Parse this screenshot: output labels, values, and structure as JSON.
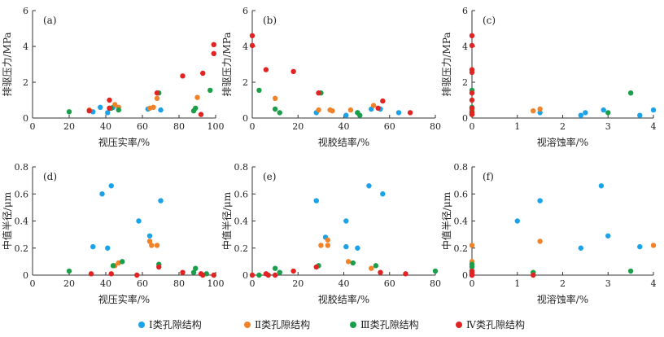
{
  "series_info": [
    {
      "name": "Ⅰ类孔隙结构",
      "color": "#1aa3e8"
    },
    {
      "name": "Ⅱ类孔隙结构",
      "color": "#f0832a"
    },
    {
      "name": "Ⅲ类孔隙结构",
      "color": "#1a9e4a"
    },
    {
      "name": "Ⅳ类孔隙结构",
      "color": "#e02424"
    }
  ],
  "chart_data": [
    {
      "type": "scatter",
      "panel": "(a)",
      "xlabel": "视压实率/%",
      "ylabel": "排驱压力/MPa",
      "xlim": [
        0,
        100
      ],
      "ylim": [
        0,
        6
      ],
      "xticks": [
        0,
        20,
        40,
        60,
        80,
        100
      ],
      "yticks": [
        0,
        2,
        4,
        6
      ],
      "series": [
        {
          "name": "Ⅰ类孔隙结构",
          "points": [
            [
              33,
              0.35
            ],
            [
              37,
              0.6
            ],
            [
              41,
              0.3
            ],
            [
              44,
              0.6
            ],
            [
              63,
              0.5
            ],
            [
              70,
              0.45
            ]
          ]
        },
        {
          "name": "Ⅱ类孔隙结构",
          "points": [
            [
              31,
              0.45
            ],
            [
              42,
              0.55
            ],
            [
              45,
              0.75
            ],
            [
              47,
              0.6
            ],
            [
              64,
              0.55
            ],
            [
              66,
              0.6
            ],
            [
              68,
              1.1
            ],
            [
              90,
              1.15
            ]
          ]
        },
        {
          "name": "Ⅲ类孔隙结构",
          "points": [
            [
              20,
              0.35
            ],
            [
              43,
              0.55
            ],
            [
              47,
              0.45
            ],
            [
              69,
              1.4
            ],
            [
              88,
              0.4
            ],
            [
              89,
              0.55
            ],
            [
              97,
              1.55
            ]
          ]
        },
        {
          "name": "Ⅳ类孔隙结构",
          "points": [
            [
              31,
              0.4
            ],
            [
              42,
              0.55
            ],
            [
              42,
              1.0
            ],
            [
              68,
              1.4
            ],
            [
              82,
              2.35
            ],
            [
              92,
              0.2
            ],
            [
              93,
              2.5
            ],
            [
              99,
              4.1
            ],
            [
              99,
              3.6
            ]
          ]
        }
      ]
    },
    {
      "type": "scatter",
      "panel": "(b)",
      "xlabel": "视胶结率/%",
      "ylabel": "排驱压力/MPa",
      "xlim": [
        0,
        80
      ],
      "ylim": [
        0,
        6
      ],
      "xticks": [
        0,
        20,
        40,
        60,
        80
      ],
      "yticks": [
        0,
        2,
        4,
        6
      ],
      "series": [
        {
          "name": "Ⅰ类孔隙结构",
          "points": [
            [
              28,
              0.3
            ],
            [
              41,
              0.15
            ],
            [
              46,
              0.3
            ],
            [
              52,
              0.5
            ],
            [
              56,
              0.5
            ],
            [
              64,
              0.3
            ]
          ]
        },
        {
          "name": "Ⅱ类孔隙结构",
          "points": [
            [
              10,
              1.1
            ],
            [
              29,
              0.45
            ],
            [
              34,
              0.45
            ],
            [
              35,
              0.4
            ],
            [
              43,
              0.45
            ],
            [
              53,
              0.7
            ]
          ]
        },
        {
          "name": "Ⅲ类孔隙结构",
          "points": [
            [
              3,
              1.55
            ],
            [
              10,
              0.5
            ],
            [
              12,
              0.3
            ],
            [
              30,
              1.4
            ],
            [
              46,
              0.3
            ],
            [
              47,
              0.15
            ]
          ]
        },
        {
          "name": "Ⅳ类孔隙结构",
          "points": [
            [
              0,
              4.6
            ],
            [
              0,
              4.05
            ],
            [
              6,
              2.7
            ],
            [
              18,
              2.6
            ],
            [
              29,
              1.4
            ],
            [
              55,
              0.55
            ],
            [
              57,
              0.95
            ],
            [
              69,
              0.3
            ]
          ]
        }
      ]
    },
    {
      "type": "scatter",
      "panel": "(c)",
      "xlabel": "视溶蚀率/%",
      "ylabel": "排驱压力/MPa",
      "xlim": [
        0,
        4
      ],
      "ylim": [
        0,
        6
      ],
      "xticks": [
        0,
        1,
        2,
        3,
        4
      ],
      "yticks": [
        0,
        2,
        4,
        6
      ],
      "series": [
        {
          "name": "Ⅰ类孔隙结构",
          "points": [
            [
              1.5,
              0.3
            ],
            [
              2.4,
              0.15
            ],
            [
              2.5,
              0.3
            ],
            [
              2.9,
              0.45
            ],
            [
              3.7,
              0.15
            ],
            [
              4.0,
              0.45
            ]
          ]
        },
        {
          "name": "Ⅱ类孔隙结构",
          "points": [
            [
              0.0,
              0.45
            ],
            [
              1.35,
              0.4
            ],
            [
              1.5,
              0.5
            ]
          ]
        },
        {
          "name": "Ⅲ类孔隙结构",
          "points": [
            [
              0.0,
              1.55
            ],
            [
              0.0,
              0.6
            ],
            [
              0.0,
              0.35
            ],
            [
              0.0,
              0.2
            ],
            [
              3.0,
              0.3
            ],
            [
              3.5,
              1.4
            ]
          ]
        },
        {
          "name": "Ⅳ类孔隙结构",
          "points": [
            [
              0.0,
              4.6
            ],
            [
              0.0,
              4.05
            ],
            [
              0.0,
              2.7
            ],
            [
              0.0,
              2.55
            ],
            [
              0.0,
              1.4
            ],
            [
              0.0,
              1.0
            ],
            [
              0.0,
              0.55
            ],
            [
              0.0,
              0.2
            ],
            [
              0.0,
              0.3
            ]
          ]
        }
      ]
    },
    {
      "type": "scatter",
      "panel": "(d)",
      "xlabel": "视压实率/%",
      "ylabel": "中值半径/μm",
      "xlim": [
        0,
        100
      ],
      "ylim": [
        0,
        0.8
      ],
      "xticks": [
        0,
        20,
        40,
        60,
        80,
        100
      ],
      "yticks": [
        0,
        0.2,
        0.4,
        0.6,
        0.8
      ],
      "series": [
        {
          "name": "Ⅰ类孔隙结构",
          "points": [
            [
              33,
              0.21
            ],
            [
              38,
              0.6
            ],
            [
              41,
              0.2
            ],
            [
              43,
              0.66
            ],
            [
              58,
              0.4
            ],
            [
              64,
              0.29
            ],
            [
              70,
              0.55
            ]
          ]
        },
        {
          "name": "Ⅱ类孔隙结构",
          "points": [
            [
              45,
              0.07
            ],
            [
              47,
              0.09
            ],
            [
              64,
              0.25
            ],
            [
              65,
              0.22
            ],
            [
              68,
              0.22
            ]
          ]
        },
        {
          "name": "Ⅲ类孔隙结构",
          "points": [
            [
              20,
              0.03
            ],
            [
              44,
              0.07
            ],
            [
              49,
              0.1
            ],
            [
              69,
              0.08
            ],
            [
              88,
              0.02
            ],
            [
              89,
              0.05
            ],
            [
              95,
              0.01
            ]
          ]
        },
        {
          "name": "Ⅳ类孔隙结构",
          "points": [
            [
              32,
              0.01
            ],
            [
              43,
              0.01
            ],
            [
              57,
              0.0
            ],
            [
              69,
              0.06
            ],
            [
              82,
              0.02
            ],
            [
              92,
              0.01
            ],
            [
              93,
              0.0
            ],
            [
              99,
              0.0
            ]
          ]
        }
      ]
    },
    {
      "type": "scatter",
      "panel": "(e)",
      "xlabel": "视胶结率/%",
      "ylabel": "中值半径/μm",
      "xlim": [
        0,
        80
      ],
      "ylim": [
        0,
        0.8
      ],
      "xticks": [
        0,
        20,
        40,
        60,
        80
      ],
      "yticks": [
        0,
        0.2,
        0.4,
        0.6,
        0.8
      ],
      "series": [
        {
          "name": "Ⅰ类孔隙结构",
          "points": [
            [
              28,
              0.55
            ],
            [
              32,
              0.28
            ],
            [
              41,
              0.4
            ],
            [
              41,
              0.21
            ],
            [
              46,
              0.2
            ],
            [
              51,
              0.66
            ],
            [
              57,
              0.6
            ]
          ]
        },
        {
          "name": "Ⅱ类孔隙结构",
          "points": [
            [
              30,
              0.22
            ],
            [
              33,
              0.22
            ],
            [
              33,
              0.26
            ],
            [
              42,
              0.1
            ],
            [
              52,
              0.05
            ]
          ]
        },
        {
          "name": "Ⅲ类孔隙结构",
          "points": [
            [
              3,
              0.0
            ],
            [
              10,
              0.05
            ],
            [
              12,
              0.02
            ],
            [
              29,
              0.07
            ],
            [
              44,
              0.09
            ],
            [
              54,
              0.07
            ],
            [
              80,
              0.03
            ]
          ]
        },
        {
          "name": "Ⅳ类孔隙结构",
          "points": [
            [
              0,
              0.0
            ],
            [
              6,
              0.01
            ],
            [
              7,
              0.0
            ],
            [
              10,
              0.0
            ],
            [
              18,
              0.03
            ],
            [
              28,
              0.06
            ],
            [
              56,
              0.02
            ],
            [
              67,
              0.01
            ]
          ]
        }
      ]
    },
    {
      "type": "scatter",
      "panel": "(f)",
      "xlabel": "视溶蚀率/%",
      "ylabel": "中值半径/μm",
      "xlim": [
        0,
        4
      ],
      "ylim": [
        0,
        0.8
      ],
      "xticks": [
        0,
        1,
        2,
        3,
        4
      ],
      "yticks": [
        0,
        0.2,
        0.4,
        0.6,
        0.8
      ],
      "series": [
        {
          "name": "Ⅰ类孔隙结构",
          "points": [
            [
              1.0,
              0.4
            ],
            [
              1.5,
              0.55
            ],
            [
              2.4,
              0.2
            ],
            [
              2.85,
              0.66
            ],
            [
              3.0,
              0.29
            ],
            [
              3.7,
              0.21
            ]
          ]
        },
        {
          "name": "Ⅱ类孔隙结构",
          "points": [
            [
              0.0,
              0.22
            ],
            [
              0.0,
              0.1
            ],
            [
              1.5,
              0.25
            ],
            [
              4.0,
              0.22
            ]
          ]
        },
        {
          "name": "Ⅲ类孔隙结构",
          "points": [
            [
              0.0,
              0.08
            ],
            [
              0.0,
              0.06
            ],
            [
              0.0,
              0.03
            ],
            [
              1.35,
              0.02
            ],
            [
              3.5,
              0.03
            ]
          ]
        },
        {
          "name": "Ⅳ类孔隙结构",
          "points": [
            [
              0.0,
              0.0
            ],
            [
              0.0,
              0.01
            ],
            [
              0.0,
              0.02
            ],
            [
              0.0,
              0.03
            ],
            [
              0.0,
              0.0
            ],
            [
              1.35,
              0.0
            ]
          ]
        }
      ]
    }
  ]
}
